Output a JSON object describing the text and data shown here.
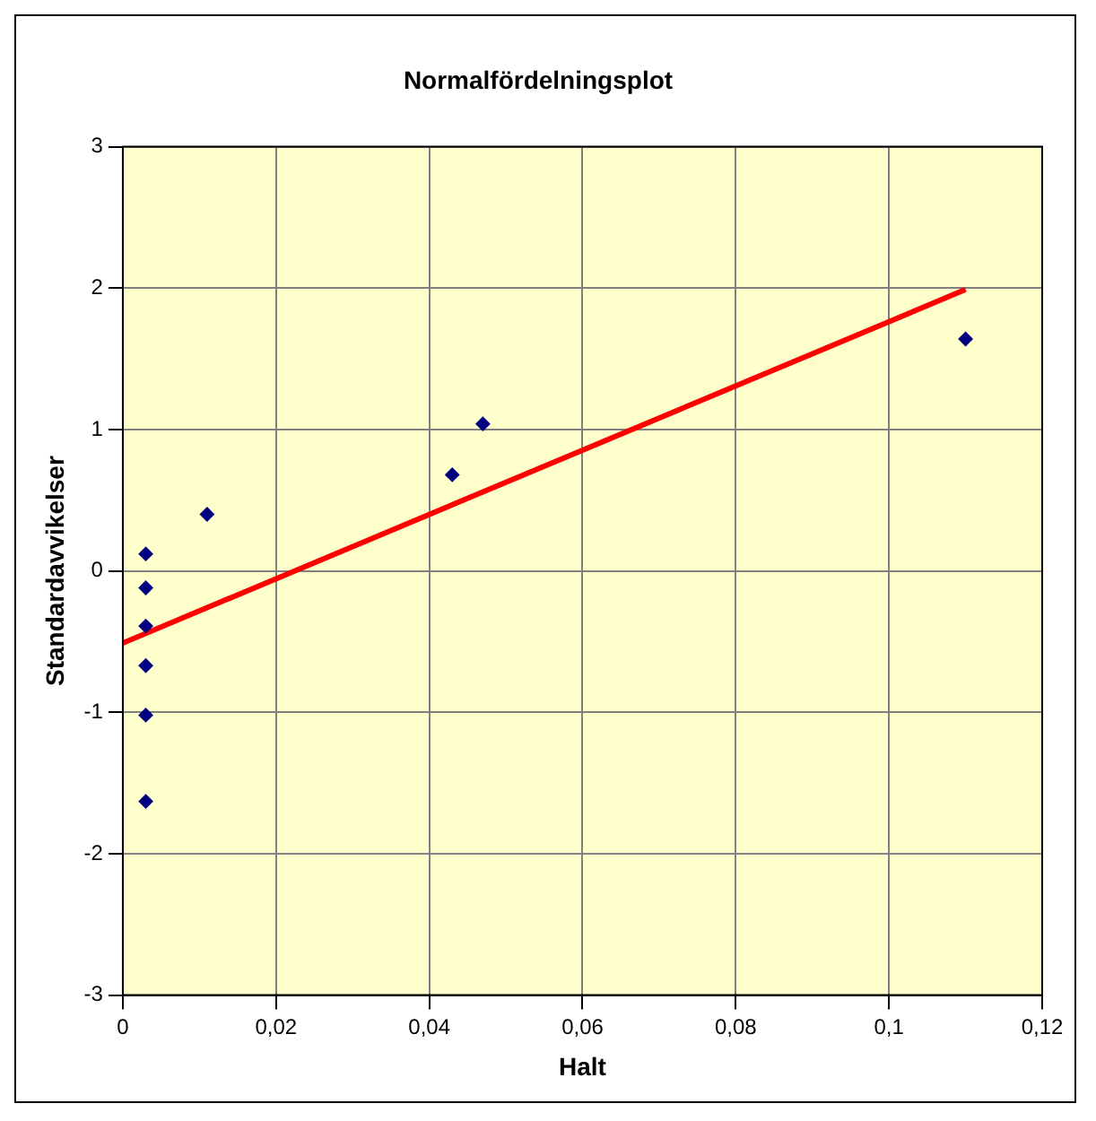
{
  "chart_data": {
    "type": "scatter",
    "title": "Normalfördelningsplot",
    "xlabel": "Halt",
    "ylabel": "Standardavvikelser",
    "series": [
      {
        "type": "scatter",
        "marker": "diamond",
        "color": "#000080",
        "x": [
          0.003,
          0.003,
          0.003,
          0.003,
          0.003,
          0.003,
          0.011,
          0.043,
          0.047,
          0.11
        ],
        "values": [
          0.12,
          -0.12,
          -0.39,
          -0.67,
          -1.02,
          -1.63,
          0.4,
          0.68,
          1.04,
          1.64
        ]
      },
      {
        "type": "line",
        "marker": "none",
        "color": "#ff0000",
        "x": [
          0,
          0.11
        ],
        "values": [
          -0.51,
          1.99
        ]
      }
    ],
    "xlim": [
      0,
      0.12
    ],
    "xticks": [
      0,
      {
        "value": 0.02,
        "label": "0,02"
      },
      {
        "value": 0.04,
        "label": "0,04"
      },
      {
        "value": 0.06,
        "label": "0,06"
      },
      {
        "value": 0.08,
        "label": "0,08"
      },
      {
        "value": 0.1,
        "label": "0,1"
      },
      {
        "value": 0.12,
        "label": "0,12"
      }
    ],
    "ylim": [
      -3,
      3
    ],
    "yticks": [
      -3,
      -2,
      -1,
      0,
      1,
      2,
      3
    ],
    "grid": true,
    "legend": false,
    "line_style": "solid"
  }
}
